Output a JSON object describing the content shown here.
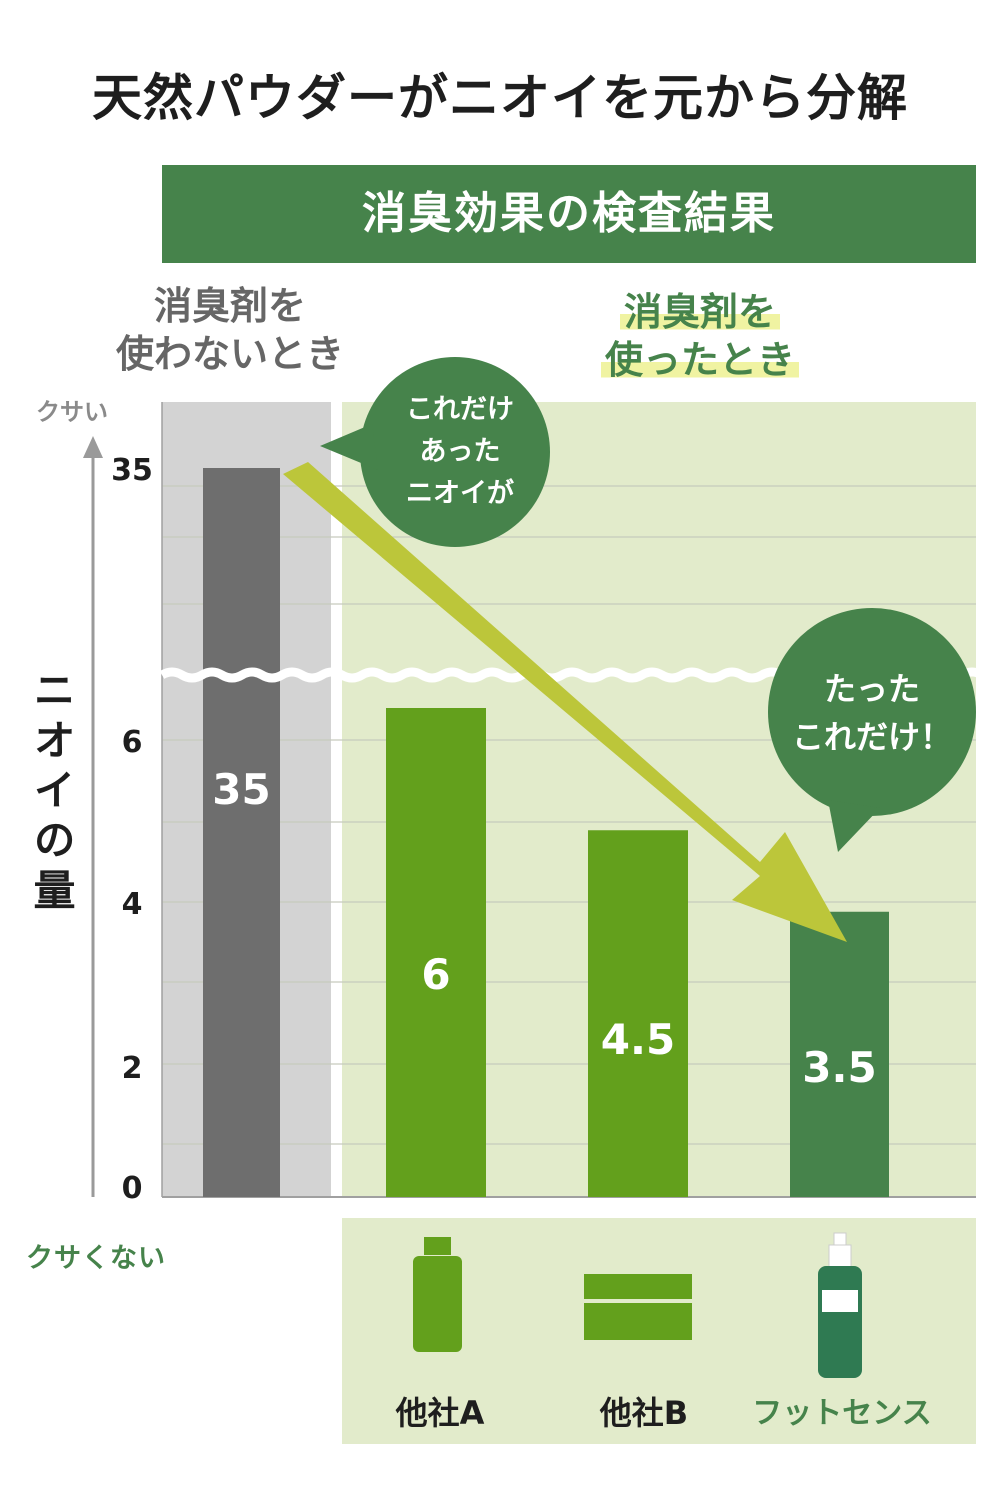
{
  "title": "天然パウダーがニオイを元から分解",
  "subtitle": "消臭効果の検査結果",
  "conditions": {
    "without_line1": "消臭剤を",
    "without_line2": "使わないとき",
    "with_line1": "消臭剤を",
    "with_line2": "使ったとき"
  },
  "axis": {
    "top_label": "クサい",
    "bottom_label": "クサくない",
    "ylabel": "ニオイの量"
  },
  "bubbles": {
    "first": [
      "これだけ",
      "あった",
      "ニオイが"
    ],
    "second": [
      "たった",
      "これだけ！"
    ]
  },
  "products": [
    "他社A",
    "他社B",
    "フットセンス"
  ],
  "colors": {
    "title_band": "#46834b",
    "without_panel": "#d3d3d3",
    "with_panel": "#e2ebcb",
    "bar_without": "#6e6e6e",
    "bar_competitor": "#63a01c",
    "bar_product": "#46834b",
    "arrow": "#bcc63a",
    "bubble": "#46834b"
  },
  "chart_data": {
    "type": "bar",
    "categories": [
      "",
      "他社A",
      "他社B",
      "フットセンス"
    ],
    "values": [
      35,
      6,
      4.5,
      3.5
    ],
    "data_labels": [
      "35",
      "6",
      "4.5",
      "3.5"
    ],
    "yticks": [
      "0",
      "2",
      "4",
      "6",
      "35"
    ],
    "ylabel": "ニオイの量",
    "ylim": [
      0,
      35
    ],
    "axis_break": true,
    "grid": true
  }
}
